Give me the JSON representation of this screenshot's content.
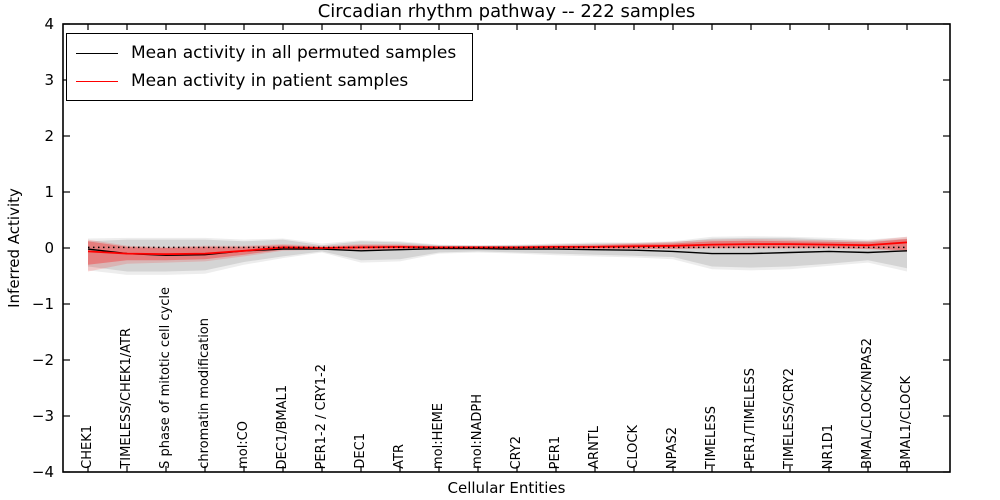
{
  "chart_data": {
    "type": "line",
    "title": "Circadian rhythm pathway -- 222 samples",
    "xlabel": "Cellular Entities",
    "ylabel": "Inferred Activity",
    "ylim": [
      -4,
      4
    ],
    "yticks": [
      -4,
      -3,
      -2,
      -1,
      0,
      1,
      2,
      3,
      4
    ],
    "grid": false,
    "categories": [
      "CHEK1",
      "TIMELESS/CHEK1/ATR",
      "S phase of mitotic cell cycle",
      "chromatin modification",
      "mol:CO",
      "DEC1/BMAL1",
      "PER1-2 / CRY1-2",
      "DEC1",
      "ATR",
      "mol:HEME",
      "mol:NADPH",
      "CRY2",
      "PER1",
      "ARNTL",
      "CLOCK",
      "NPAS2",
      "TIMELESS",
      "PER1/TIMELESS",
      "TIMELESS/CRY2",
      "NR1D1",
      "BMAL/CLOCK/NPAS2",
      "BMAL1/CLOCK"
    ],
    "reference_line": {
      "value": 0.01,
      "style": "dotted",
      "color": "#000000"
    },
    "series": [
      {
        "name": "Mean activity in all permuted samples",
        "color": "#000000",
        "values": [
          -0.02,
          -0.1,
          -0.13,
          -0.12,
          -0.05,
          -0.02,
          -0.02,
          -0.05,
          -0.03,
          -0.01,
          -0.01,
          -0.02,
          -0.02,
          -0.03,
          -0.04,
          -0.06,
          -0.1,
          -0.1,
          -0.08,
          -0.06,
          -0.08,
          -0.05
        ]
      },
      {
        "name": "Mean activity in patient samples",
        "color": "#ff0000",
        "values": [
          -0.06,
          -0.1,
          -0.11,
          -0.1,
          -0.05,
          0.01,
          0.0,
          0.01,
          0.02,
          0.01,
          0.01,
          0.01,
          0.02,
          0.02,
          0.03,
          0.04,
          0.06,
          0.07,
          0.07,
          0.06,
          0.05,
          0.1
        ]
      }
    ],
    "bands": [
      {
        "name": "permuted-band-outer",
        "color": "rgba(0,0,0,0.07)",
        "upper": [
          0.17,
          0.18,
          0.18,
          0.18,
          0.15,
          0.17,
          0.08,
          0.14,
          0.12,
          0.06,
          0.05,
          0.06,
          0.08,
          0.1,
          0.1,
          0.12,
          0.2,
          0.21,
          0.2,
          0.18,
          0.15,
          0.2
        ],
        "lower": [
          -0.4,
          -0.48,
          -0.48,
          -0.46,
          -0.3,
          -0.18,
          -0.08,
          -0.26,
          -0.24,
          -0.1,
          -0.08,
          -0.1,
          -0.13,
          -0.15,
          -0.17,
          -0.2,
          -0.38,
          -0.4,
          -0.38,
          -0.32,
          -0.26,
          -0.42
        ]
      },
      {
        "name": "permuted-band-inner",
        "color": "rgba(0,0,0,0.10)",
        "upper": [
          0.12,
          0.15,
          0.15,
          0.15,
          0.12,
          0.15,
          0.05,
          0.12,
          0.1,
          0.05,
          0.04,
          0.05,
          0.06,
          0.08,
          0.08,
          0.1,
          0.17,
          0.18,
          0.18,
          0.15,
          0.12,
          0.17
        ],
        "lower": [
          -0.33,
          -0.42,
          -0.42,
          -0.4,
          -0.25,
          -0.15,
          -0.06,
          -0.22,
          -0.2,
          -0.08,
          -0.06,
          -0.08,
          -0.1,
          -0.12,
          -0.14,
          -0.16,
          -0.33,
          -0.35,
          -0.33,
          -0.28,
          -0.22,
          -0.36
        ]
      },
      {
        "name": "patient-band-outer",
        "color": "rgba(255,0,0,0.15)",
        "upper": [
          0.15,
          0.04,
          0.02,
          0.04,
          0.04,
          0.07,
          0.04,
          0.07,
          0.07,
          0.04,
          0.04,
          0.04,
          0.06,
          0.07,
          0.09,
          0.11,
          0.15,
          0.16,
          0.15,
          0.14,
          0.13,
          0.2
        ],
        "lower": [
          -0.42,
          -0.28,
          -0.26,
          -0.24,
          -0.15,
          -0.05,
          -0.03,
          -0.05,
          -0.03,
          -0.02,
          -0.02,
          -0.02,
          -0.02,
          -0.02,
          -0.02,
          -0.02,
          -0.01,
          -0.01,
          -0.01,
          -0.01,
          -0.02,
          -0.07
        ]
      },
      {
        "name": "patient-band-inner",
        "color": "rgba(255,0,0,0.30)",
        "upper": [
          0.12,
          0.02,
          0.0,
          0.02,
          0.02,
          0.05,
          0.02,
          0.05,
          0.05,
          0.03,
          0.03,
          0.03,
          0.04,
          0.05,
          0.07,
          0.08,
          0.12,
          0.13,
          0.12,
          0.11,
          0.1,
          0.16
        ],
        "lower": [
          -0.3,
          -0.22,
          -0.22,
          -0.2,
          -0.12,
          -0.03,
          -0.02,
          -0.03,
          -0.02,
          -0.01,
          -0.01,
          -0.01,
          -0.01,
          -0.01,
          -0.01,
          -0.01,
          0.0,
          0.0,
          0.0,
          0.0,
          -0.01,
          -0.04
        ]
      }
    ],
    "legend": {
      "position": "upper-left",
      "entries": [
        {
          "label": "Mean activity in all permuted samples",
          "color": "#000000"
        },
        {
          "label": "Mean activity in patient samples",
          "color": "#ff0000"
        }
      ]
    }
  }
}
